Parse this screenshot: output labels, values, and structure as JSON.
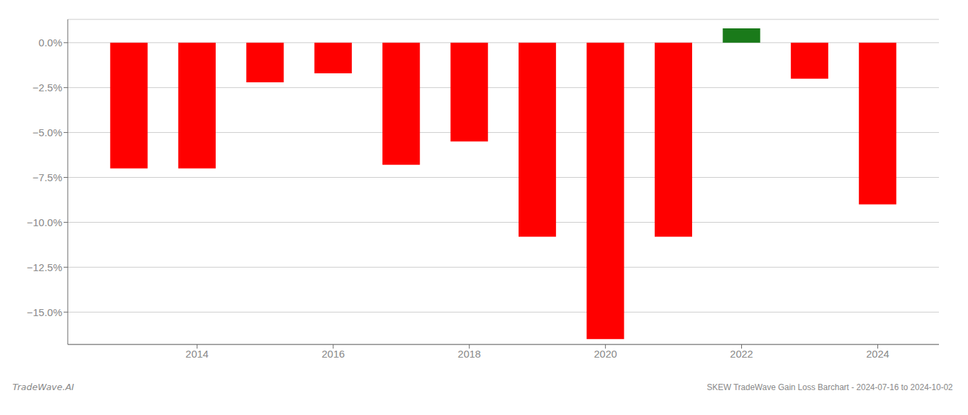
{
  "chart_data": {
    "type": "bar",
    "title": "SKEW TradeWave Gain Loss Barchart - 2024-07-16 to 2024-10-02",
    "annotations": [
      "TradeWave.AI"
    ],
    "x": [
      2013,
      2014,
      2015,
      2016,
      2017,
      2018,
      2019,
      2020,
      2021,
      2022,
      2023,
      2024
    ],
    "values": [
      -0.07,
      -0.07,
      -0.022,
      -0.017,
      -0.068,
      -0.055,
      -0.108,
      -0.165,
      -0.108,
      0.008,
      -0.02,
      -0.09
    ],
    "colors": [
      "#ff0000",
      "#ff0000",
      "#ff0000",
      "#ff0000",
      "#ff0000",
      "#ff0000",
      "#ff0000",
      "#ff0000",
      "#ff0000",
      "#1a7a1a",
      "#ff0000",
      "#ff0000"
    ],
    "xlim": [
      2012.1,
      2024.9
    ],
    "xticks": [
      2014,
      2016,
      2018,
      2020,
      2022,
      2024
    ],
    "ylim": [
      -0.168,
      0.013
    ],
    "yticks": [
      {
        "value": 0.0,
        "label": "0.0%"
      },
      {
        "value": -0.025,
        "label": "−2.5%"
      },
      {
        "value": -0.05,
        "label": "−5.0%"
      },
      {
        "value": -0.075,
        "label": "−7.5%"
      },
      {
        "value": -0.1,
        "label": "−10.0%"
      },
      {
        "value": -0.125,
        "label": "−12.5%"
      },
      {
        "value": -0.15,
        "label": "−15.0%"
      }
    ],
    "grid": true
  }
}
